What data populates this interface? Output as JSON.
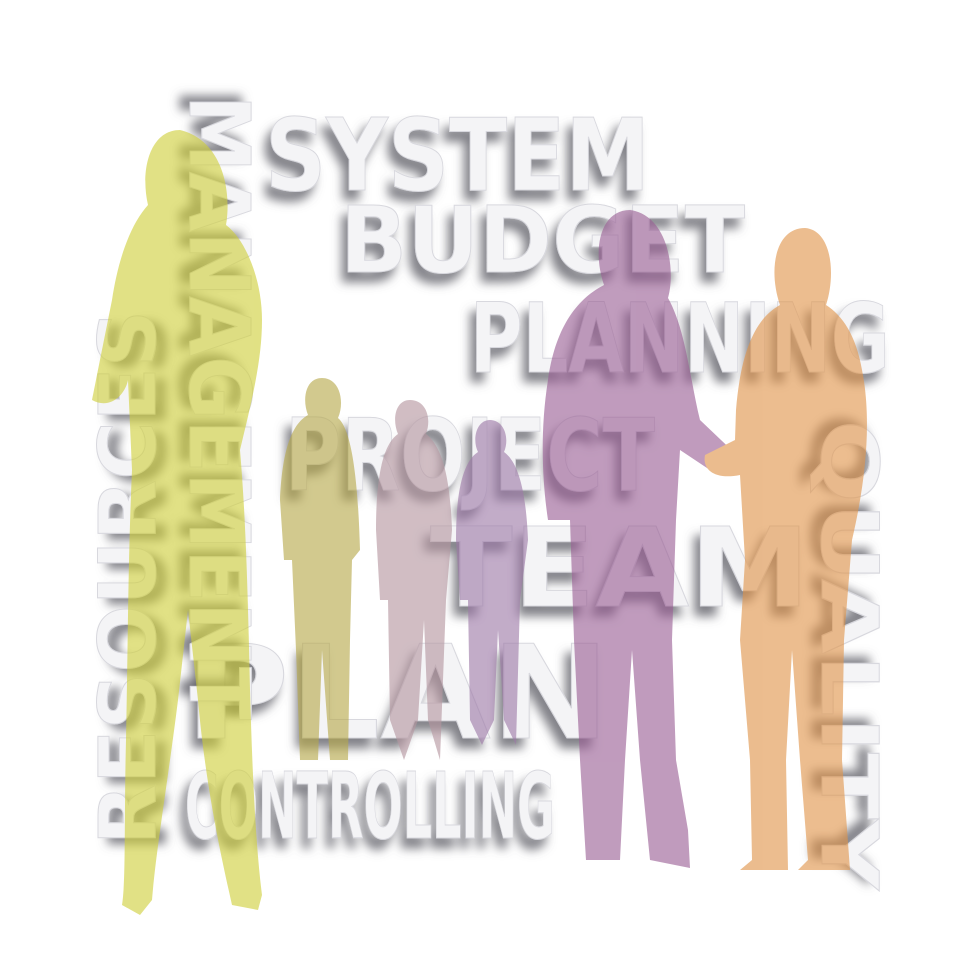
{
  "words": [
    "SYSTEM",
    "BUDGET",
    "PLANNING",
    "PROJECT",
    "TEAM",
    "PLAN",
    "CONTROLLING",
    "RESOURCES",
    "MANAGEMENT",
    "QUALITY"
  ]
}
